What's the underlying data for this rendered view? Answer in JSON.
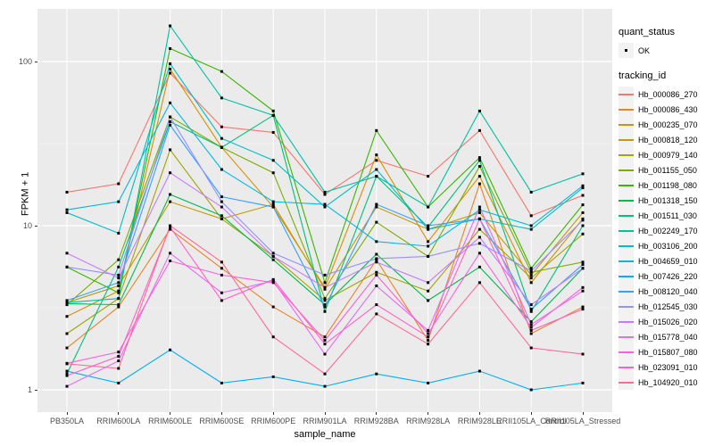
{
  "axes": {
    "y": {
      "title": "FPKM + 1",
      "tick_labels": [
        "100",
        "10",
        "1"
      ]
    },
    "x": {
      "title": "sample_name"
    }
  },
  "legend": {
    "quant_status_title": "quant_status",
    "quant_status_item": "OK",
    "tracking_id_title": "tracking_id"
  },
  "colors": {
    "panel_background": "#EBEBEB",
    "gridline_major": "#FFFFFF",
    "gridline_minor": "#F5F5F5",
    "point": "#000000",
    "tick_text": "#4D4D4D"
  },
  "chart_data": {
    "type": "line",
    "title": "",
    "xlabel": "sample_name",
    "ylabel": "FPKM + 1",
    "y_scale": "log10",
    "ylim": [
      0.7,
      210
    ],
    "y_ticks": [
      1,
      10,
      100
    ],
    "y_minor_breaks": [
      3.1623,
      31.623
    ],
    "grid": true,
    "legend_position": "right",
    "legend_title": "tracking_id",
    "point_legend": {
      "title": "quant_status",
      "items": [
        "OK"
      ]
    },
    "categories": [
      "PB350LA",
      "RRIM600LA",
      "RRIM600LE",
      "RRIM600SE",
      "RRIM600PE",
      "RRIM901LA",
      "RRIM928BA",
      "RRIM928LA",
      "RRIM928LE",
      "RRII105LA_Control",
      "RRII105LA_Stressed"
    ],
    "series": [
      {
        "name": "Hb_000086_270",
        "color": "#F8766D",
        "values": [
          16,
          18,
          85,
          40,
          37,
          15.5,
          25,
          20,
          38,
          11.5,
          15.3
        ]
      },
      {
        "name": "Hb_000086_430",
        "color": "#E88526",
        "values": [
          1.8,
          3.2,
          9.5,
          5.5,
          3.2,
          2.1,
          6.2,
          2.0,
          18,
          2.2,
          3.2
        ]
      },
      {
        "name": "Hb_000235_070",
        "color": "#D89000",
        "values": [
          2.8,
          4.0,
          90,
          30,
          13,
          4.2,
          27,
          8.0,
          20,
          4.5,
          11
        ]
      },
      {
        "name": "Hb_000818_120",
        "color": "#C49A00",
        "values": [
          3.4,
          4.3,
          14,
          11,
          13.5,
          4.1,
          13,
          9.5,
          12,
          5.0,
          12
        ]
      },
      {
        "name": "Hb_000979_140",
        "color": "#A3A500",
        "values": [
          2.2,
          3.6,
          29,
          11,
          6.5,
          3.5,
          5.2,
          4.0,
          9.5,
          4.8,
          8.9
        ]
      },
      {
        "name": "Hb_001155_050",
        "color": "#7CAE00",
        "values": [
          3.3,
          6.2,
          46,
          30,
          21,
          3.6,
          10.5,
          6.5,
          23,
          5.2,
          6.0
        ]
      },
      {
        "name": "Hb_001198_080",
        "color": "#39B600",
        "values": [
          5.6,
          3.9,
          120,
          87,
          50,
          4.5,
          38,
          13,
          26,
          5.5,
          13.4
        ]
      },
      {
        "name": "Hb_001318_150",
        "color": "#00BB4E",
        "values": [
          3.35,
          3.3,
          15.5,
          11.5,
          6.2,
          3.3,
          6.7,
          3.5,
          5.6,
          2.6,
          5.5
        ]
      },
      {
        "name": "Hb_001511_030",
        "color": "#00BF7D",
        "values": [
          1.25,
          5.6,
          43,
          30,
          47,
          3.0,
          20,
          9.8,
          25,
          3.0,
          10
        ]
      },
      {
        "name": "Hb_002249_170",
        "color": "#00C1A3",
        "values": [
          3.4,
          3.6,
          165,
          60,
          47,
          16,
          20,
          13,
          50,
          16,
          20.7
        ]
      },
      {
        "name": "Hb_003106_200",
        "color": "#00BFC4",
        "values": [
          12,
          9,
          97,
          34,
          25,
          13,
          22,
          9.5,
          11,
          9.5,
          17
        ]
      },
      {
        "name": "Hb_004659_010",
        "color": "#00BAE0",
        "values": [
          12.5,
          14,
          56,
          22,
          14,
          13.5,
          8.0,
          7.5,
          12.5,
          10,
          17.5
        ]
      },
      {
        "name": "Hb_007426_220",
        "color": "#00B0F6",
        "values": [
          1.3,
          1.1,
          1.75,
          1.1,
          1.2,
          1.05,
          1.25,
          1.1,
          1.3,
          1.0,
          1.1
        ]
      },
      {
        "name": "Hb_008120_040",
        "color": "#35A2FF",
        "values": [
          3.5,
          4.5,
          41,
          15,
          13,
          3.2,
          13.5,
          10,
          11,
          3.1,
          5.8
        ]
      },
      {
        "name": "Hb_012545_030",
        "color": "#9590FF",
        "values": [
          5.6,
          5.0,
          46,
          14,
          6.8,
          5.0,
          6.3,
          6.5,
          7.8,
          5.3,
          10.8
        ]
      },
      {
        "name": "Hb_015026_020",
        "color": "#C77CFF",
        "values": [
          6.8,
          4.8,
          21,
          13,
          6.5,
          4.2,
          6.0,
          4.5,
          8.5,
          3.3,
          5.5
        ]
      },
      {
        "name": "Hb_015778_040",
        "color": "#E76BF3",
        "values": [
          1.05,
          1.5,
          6.8,
          3.9,
          4.6,
          1.65,
          4.3,
          2.3,
          13,
          2.5,
          4.0
        ]
      },
      {
        "name": "Hb_015807_080",
        "color": "#FA62DB",
        "values": [
          1.45,
          1.7,
          6.1,
          5.0,
          4.5,
          2.0,
          5.0,
          2.2,
          6.8,
          2.4,
          4.2
        ]
      },
      {
        "name": "Hb_023091_010",
        "color": "#FF61CC",
        "values": [
          1.22,
          1.6,
          9.8,
          3.5,
          4.7,
          1.9,
          3.3,
          2.1,
          11,
          2.3,
          3.1
        ]
      },
      {
        "name": "Hb_104920_010",
        "color": "#FF6A98",
        "values": [
          1.44,
          1.35,
          10,
          6.0,
          2.1,
          1.25,
          2.9,
          1.9,
          4.5,
          1.8,
          1.65
        ]
      }
    ]
  }
}
